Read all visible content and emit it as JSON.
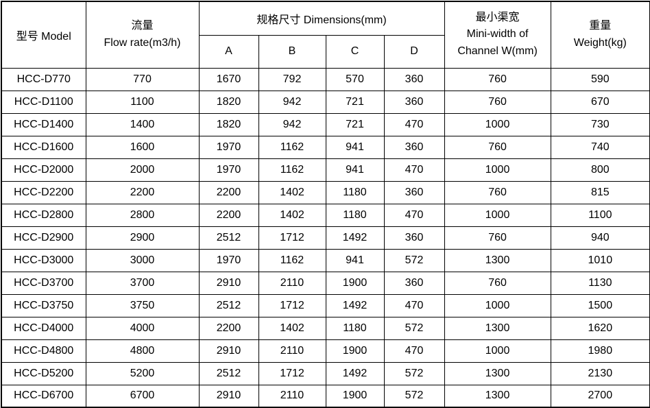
{
  "table": {
    "header": {
      "model": "型号 Model",
      "flow_line1": "流量",
      "flow_line2": "Flow rate(m3/h)",
      "dimensions_group": "规格尺寸 Dimensions(mm)",
      "dim_cols": [
        "A",
        "B",
        "C",
        "D"
      ],
      "channel_line1": "最小渠宽",
      "channel_line2": "Mini-width of",
      "channel_line3": "Channel W(mm)",
      "weight_line1": "重量",
      "weight_line2": "Weight(kg)"
    },
    "rows": [
      [
        "HCC-D770",
        "770",
        "1670",
        "792",
        "570",
        "360",
        "760",
        "590"
      ],
      [
        "HCC-D1100",
        "1100",
        "1820",
        "942",
        "721",
        "360",
        "760",
        "670"
      ],
      [
        "HCC-D1400",
        "1400",
        "1820",
        "942",
        "721",
        "470",
        "1000",
        "730"
      ],
      [
        "HCC-D1600",
        "1600",
        "1970",
        "1162",
        "941",
        "360",
        "760",
        "740"
      ],
      [
        "HCC-D2000",
        "2000",
        "1970",
        "1162",
        "941",
        "470",
        "1000",
        "800"
      ],
      [
        "HCC-D2200",
        "2200",
        "2200",
        "1402",
        "1180",
        "360",
        "760",
        "815"
      ],
      [
        "HCC-D2800",
        "2800",
        "2200",
        "1402",
        "1180",
        "470",
        "1000",
        "1100"
      ],
      [
        "HCC-D2900",
        "2900",
        "2512",
        "1712",
        "1492",
        "360",
        "760",
        "940"
      ],
      [
        "HCC-D3000",
        "3000",
        "1970",
        "1162",
        "941",
        "572",
        "1300",
        "1010"
      ],
      [
        "HCC-D3700",
        "3700",
        "2910",
        "2110",
        "1900",
        "360",
        "760",
        "1130"
      ],
      [
        "HCC-D3750",
        "3750",
        "2512",
        "1712",
        "1492",
        "470",
        "1000",
        "1500"
      ],
      [
        "HCC-D4000",
        "4000",
        "2200",
        "1402",
        "1180",
        "572",
        "1300",
        "1620"
      ],
      [
        "HCC-D4800",
        "4800",
        "2910",
        "2110",
        "1900",
        "470",
        "1000",
        "1980"
      ],
      [
        "HCC-D5200",
        "5200",
        "2512",
        "1712",
        "1492",
        "572",
        "1300",
        "2130"
      ],
      [
        "HCC-D6700",
        "6700",
        "2910",
        "2110",
        "1900",
        "572",
        "1300",
        "2700"
      ]
    ]
  },
  "colors": {
    "border": "#000000",
    "text": "#000000",
    "background": "#ffffff"
  }
}
